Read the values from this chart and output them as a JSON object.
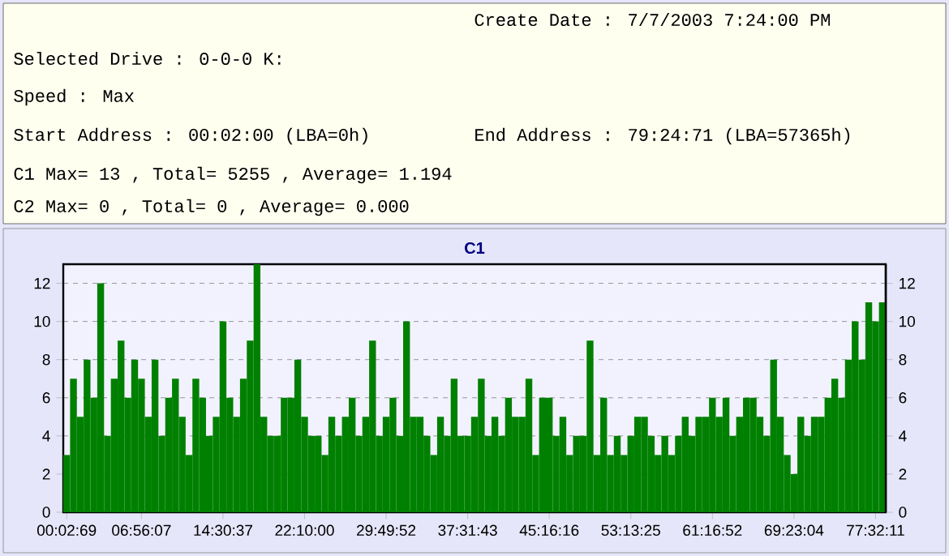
{
  "chart_data": {
    "type": "bar",
    "title": "C1",
    "annotations": [
      "Create Date : 7/7/2003 7:24:00 PM",
      "Selected Drive : 0-0-0 K:",
      "Speed : Max",
      "Start Address : 00:02:00 (LBA=0h)",
      "End Address : 79:24:71 (LBA=57365h)",
      "C1 Max= 13 , Total= 5255 , Average= 1.194",
      "C2 Max= 0 , Total= 0 , Average= 0.000"
    ],
    "categories": [
      "00:02:69",
      null,
      null,
      null,
      null,
      null,
      null,
      null,
      null,
      null,
      null,
      "06:56:07",
      null,
      null,
      null,
      null,
      null,
      null,
      null,
      null,
      null,
      null,
      null,
      "14:30:37",
      null,
      null,
      null,
      null,
      null,
      null,
      null,
      null,
      null,
      null,
      null,
      "22:10:00",
      null,
      null,
      null,
      null,
      null,
      null,
      null,
      null,
      null,
      null,
      null,
      "29:49:52",
      null,
      null,
      null,
      null,
      null,
      null,
      null,
      null,
      null,
      null,
      null,
      "37:31:43",
      null,
      null,
      null,
      null,
      null,
      null,
      null,
      null,
      null,
      null,
      null,
      "45:16:16",
      null,
      null,
      null,
      null,
      null,
      null,
      null,
      null,
      null,
      null,
      null,
      "53:13:25",
      null,
      null,
      null,
      null,
      null,
      null,
      null,
      null,
      null,
      null,
      null,
      "61:16:52",
      null,
      null,
      null,
      null,
      null,
      null,
      null,
      null,
      null,
      null,
      null,
      "69:23:04",
      null,
      null,
      null,
      null,
      null,
      null,
      null,
      null,
      null,
      null,
      null,
      "77:32:11",
      null
    ],
    "values": [
      3,
      7,
      5,
      8,
      6,
      12,
      4,
      7,
      9,
      6,
      8,
      7,
      5,
      8,
      4,
      6,
      7,
      5,
      3,
      7,
      6,
      4,
      5,
      10,
      6,
      5,
      7,
      9,
      13,
      5,
      4,
      4,
      6,
      6,
      8,
      5,
      4,
      4,
      3,
      5,
      4,
      5,
      6,
      4,
      5,
      9,
      4,
      5,
      6,
      4,
      10,
      5,
      5,
      4,
      3,
      5,
      4,
      7,
      4,
      4,
      5,
      7,
      4,
      5,
      4,
      6,
      5,
      5,
      7,
      3,
      6,
      6,
      4,
      5,
      3,
      4,
      4,
      9,
      3,
      6,
      3,
      4,
      3,
      4,
      5,
      5,
      4,
      3,
      4,
      3,
      4,
      5,
      4,
      5,
      5,
      6,
      5,
      6,
      4,
      5,
      6,
      6,
      5,
      4,
      8,
      5,
      3,
      2,
      5,
      4,
      5,
      5,
      6,
      7,
      6,
      8,
      10,
      8,
      11,
      10,
      11
    ],
    "color": "#008000",
    "ylim": [
      0,
      13
    ],
    "yticks": [
      0,
      2,
      4,
      6,
      8,
      10,
      12
    ],
    "y2lim": [
      0,
      13
    ],
    "y2ticks": [
      0,
      2,
      4,
      6,
      8,
      10,
      12
    ],
    "grid": "y"
  }
}
